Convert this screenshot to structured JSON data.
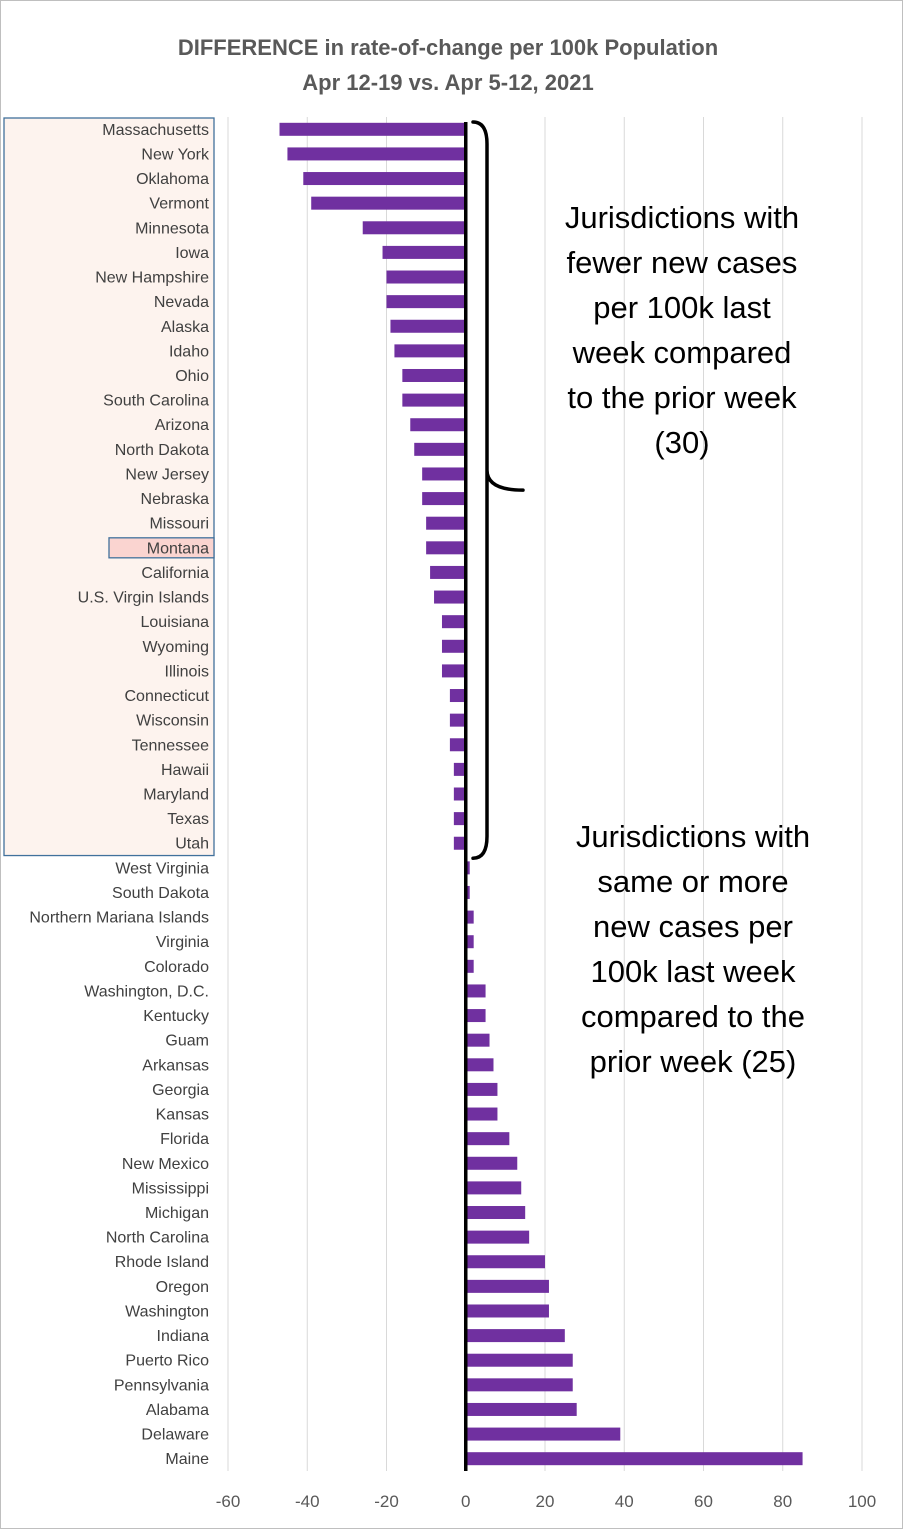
{
  "chart_data": {
    "type": "bar",
    "orientation": "horizontal",
    "title": "DIFFERENCE in rate-of-change per 100k Population",
    "subtitle": "Apr 12-19 vs. Apr 5-12, 2021",
    "xlabel": "",
    "ylabel": "",
    "xlim": [
      -60,
      100
    ],
    "xticks": [
      -60,
      -40,
      -20,
      0,
      20,
      40,
      60,
      80,
      100
    ],
    "grid": "vertical",
    "legend": "none",
    "bar_color": "#7030a0",
    "highlight_fill": "#fad4d0",
    "group_fill": "#fdf3ee",
    "group_border": "#41719c",
    "highlighted_category": "Montana",
    "categories": [
      "Massachusetts",
      "New York",
      "Oklahoma",
      "Vermont",
      "Minnesota",
      "Iowa",
      "New Hampshire",
      "Nevada",
      "Alaska",
      "Idaho",
      "Ohio",
      "South Carolina",
      "Arizona",
      "North Dakota",
      "New Jersey",
      "Nebraska",
      "Missouri",
      "Montana",
      "California",
      "U.S. Virgin Islands",
      "Louisiana",
      "Wyoming",
      "Illinois",
      "Connecticut",
      "Wisconsin",
      "Tennessee",
      "Hawaii",
      "Maryland",
      "Texas",
      "Utah",
      "West Virginia",
      "South Dakota",
      "Northern Mariana Islands",
      "Virginia",
      "Colorado",
      "Washington, D.C.",
      "Kentucky",
      "Guam",
      "Arkansas",
      "Georgia",
      "Kansas",
      "Florida",
      "New Mexico",
      "Mississippi",
      "Michigan",
      "North Carolina",
      "Rhode Island",
      "Oregon",
      "Washington",
      "Indiana",
      "Puerto Rico",
      "Pennsylvania",
      "Alabama",
      "Delaware",
      "Maine"
    ],
    "values": [
      -47,
      -45,
      -41,
      -39,
      -26,
      -21,
      -20,
      -20,
      -19,
      -18,
      -16,
      -16,
      -14,
      -13,
      -11,
      -11,
      -10,
      -10,
      -9,
      -8,
      -6,
      -6,
      -6,
      -4,
      -4,
      -4,
      -3,
      -3,
      -3,
      -3,
      1,
      1,
      2,
      2,
      2,
      5,
      5,
      6,
      7,
      8,
      8,
      11,
      13,
      14,
      15,
      16,
      20,
      21,
      21,
      25,
      27,
      27,
      28,
      39,
      85
    ],
    "annotations": [
      {
        "text": "Jurisdictions with fewer new cases per 100k last week compared to the prior week (30)",
        "lines": [
          "Jurisdictions with",
          "fewer new cases",
          "per 100k last",
          "week compared",
          "to the prior week",
          "(30)"
        ],
        "spans_categories": [
          0,
          29
        ]
      },
      {
        "text": "Jurisdictions with same or more new cases per 100k last week compared to the prior week (25)",
        "lines": [
          "Jurisdictions with",
          "same or more",
          "new cases per",
          "100k last week",
          "compared to the",
          "prior week (25)"
        ],
        "spans_categories": [
          30,
          54
        ]
      }
    ]
  }
}
